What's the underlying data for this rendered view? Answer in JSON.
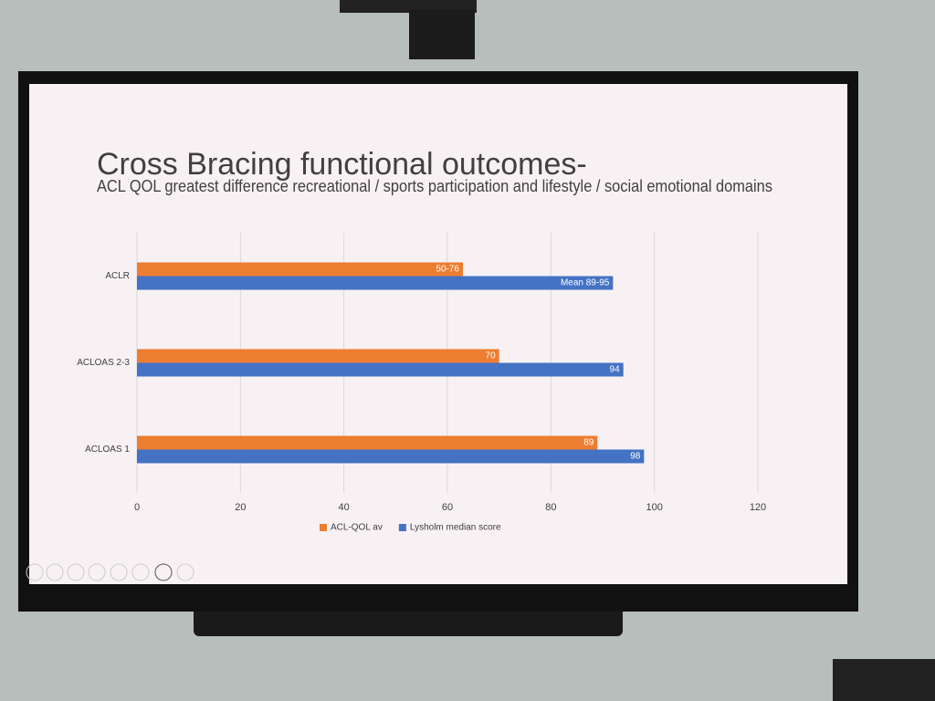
{
  "chart_data": {
    "type": "hbar",
    "title": "Cross Bracing functional outcomes-",
    "subtitle": "ACL QOL greatest difference recreational / sports participation and lifestyle / social emotional domains",
    "categories": [
      "ACLR",
      "ACLOAS 2-3",
      "ACLOAS 1"
    ],
    "series": [
      {
        "name": "ACL-QOL av",
        "color": "#ed7d31",
        "values": [
          63,
          70,
          89
        ],
        "value_labels": [
          "50-76",
          "70",
          "89"
        ]
      },
      {
        "name": "Lysholm median score",
        "color": "#4472c4",
        "values": [
          92,
          94,
          98
        ],
        "value_labels": [
          "Mean 89-95",
          "94",
          "98"
        ]
      }
    ],
    "xlim": [
      0,
      120
    ],
    "xticks": [
      0,
      20,
      40,
      60,
      80,
      100,
      120
    ],
    "grid": true,
    "legend": "bottom"
  }
}
